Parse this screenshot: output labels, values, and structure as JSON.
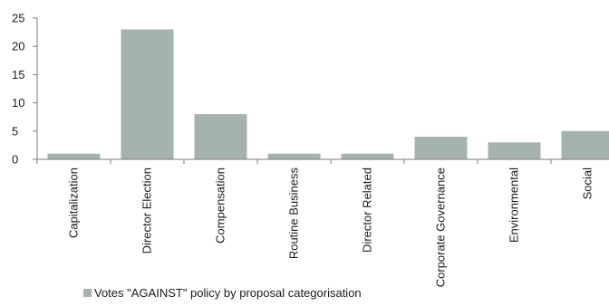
{
  "chart_data": {
    "type": "bar",
    "title": "",
    "xlabel": "",
    "ylabel": "",
    "categories": [
      "Capitalization",
      "Director Election",
      "Compensation",
      "Routine Business",
      "Director Related",
      "Corporate Governance",
      "Environmental",
      "Social"
    ],
    "series": [
      {
        "name": "Votes \"AGAINST\" policy by proposal categorisation",
        "values": [
          1,
          23,
          8,
          1,
          1,
          4,
          3,
          5
        ],
        "color": "#a5b3ae"
      }
    ],
    "ylim": [
      0,
      25
    ],
    "yticks": [
      0,
      5,
      10,
      15,
      20,
      25
    ],
    "grid": false,
    "legend_position": "bottom-left"
  }
}
